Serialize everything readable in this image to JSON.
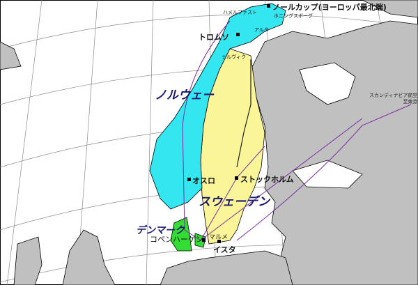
{
  "colors": {
    "sea": "#ffffff",
    "land": "#c0c0c0",
    "norway": "#33e6f0",
    "sweden": "#fbf59a",
    "denmark": "#33dd33",
    "route": "#7a2fa0",
    "grid": "#8a8a8a"
  },
  "countries": {
    "norway": "ノルウェー",
    "sweden": "スウェーデン",
    "denmark": "デンマーク"
  },
  "cities": {
    "nordkapp": "ノールカップ(ヨーロッパ最北端)",
    "hammerfest": "ハメルファスト",
    "honningsvag": "ホニングスボーグ",
    "alta": "アルタ",
    "tromso": "トロムソ",
    "narvik": "ナルヴィク",
    "oslo": "オスロ",
    "stockholm": "ストックホルム",
    "copenhagen": "コペンハーゲン",
    "malmo": "マルメ",
    "ystad": "イスタ"
  },
  "airline": {
    "line1": "スカンディナビア航空",
    "line2": "至東京"
  }
}
